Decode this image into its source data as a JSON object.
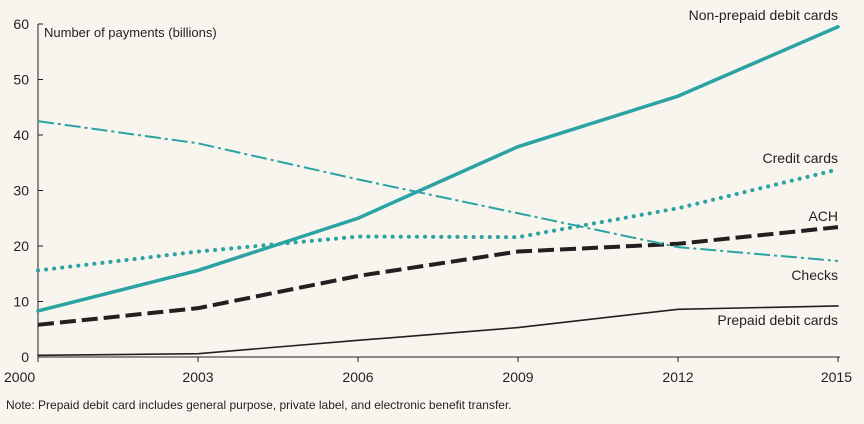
{
  "chart_data": {
    "type": "line",
    "ylabel": "Number of payments (billions)",
    "x": [
      2000,
      2003,
      2006,
      2009,
      2012,
      2015
    ],
    "x_ticks": [
      "2000",
      "2003",
      "2006",
      "2009",
      "2012",
      "2015"
    ],
    "y_ticks": [
      "0",
      "10",
      "20",
      "30",
      "40",
      "50",
      "60"
    ],
    "xlim": [
      2000,
      2015
    ],
    "ylim": [
      0,
      60
    ],
    "series": [
      {
        "name": "Non-prepaid debit cards",
        "label": "Non-prepaid debit cards",
        "values": [
          8.3,
          15.6,
          25.0,
          37.9,
          47.0,
          59.5
        ],
        "color": "#2ba3a3",
        "style": "solid-thick"
      },
      {
        "name": "Credit cards",
        "label": "Credit cards",
        "values": [
          15.6,
          19.0,
          21.7,
          21.6,
          26.8,
          33.8
        ],
        "color": "#2ba3a3",
        "style": "dotted"
      },
      {
        "name": "ACH",
        "label": "ACH",
        "values": [
          5.8,
          8.8,
          14.6,
          19.0,
          20.4,
          23.4
        ],
        "color": "#231f20",
        "style": "dashed"
      },
      {
        "name": "Checks",
        "label": "Checks",
        "values": [
          42.5,
          38.5,
          32.0,
          25.9,
          19.8,
          17.3
        ],
        "color": "#2ba3a3",
        "style": "dashdot"
      },
      {
        "name": "Prepaid debit cards",
        "label": "Prepaid debit cards",
        "values": [
          0.3,
          0.6,
          3.0,
          5.3,
          8.6,
          9.2
        ],
        "color": "#231f20",
        "style": "solid-thin"
      }
    ]
  },
  "note": "Note: Prepaid debit card includes general purpose, private label, and electronic benefit transfer."
}
